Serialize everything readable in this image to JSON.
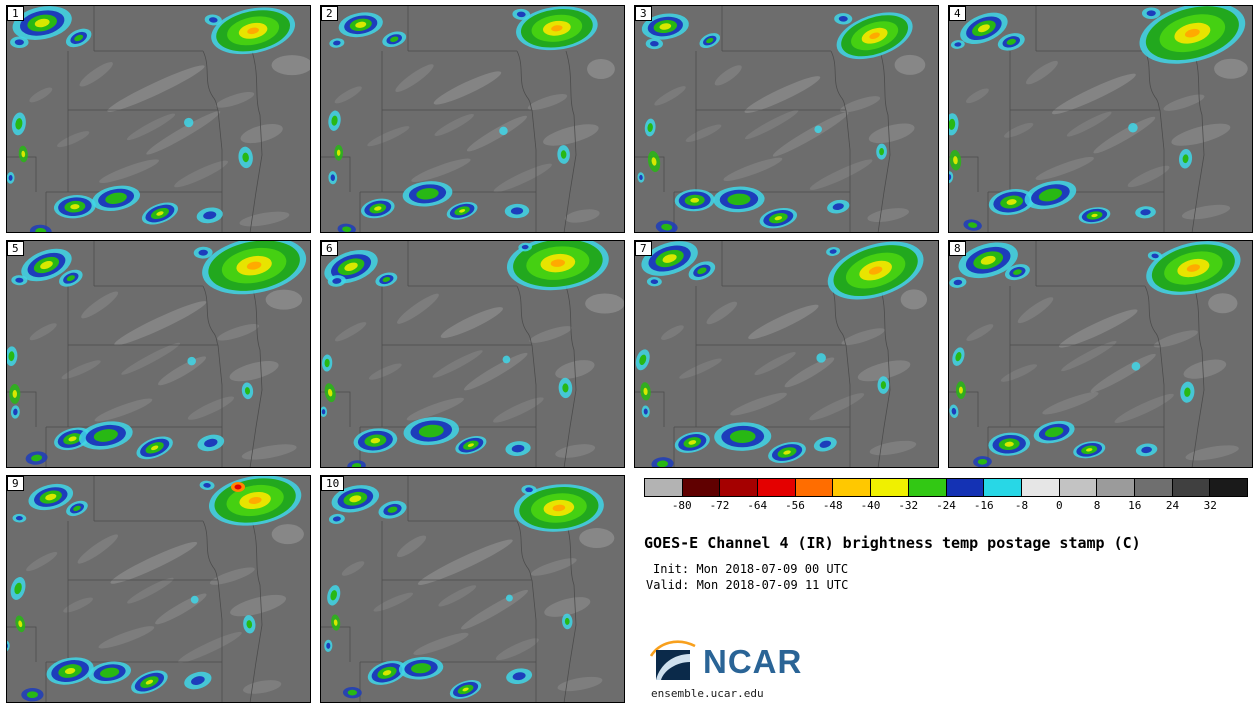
{
  "figure": {
    "background": "#ffffff",
    "map_base_color": "#6d6d6d",
    "border_line_color": "#4c4c4c"
  },
  "panels": [
    {
      "label": "1"
    },
    {
      "label": "2"
    },
    {
      "label": "3"
    },
    {
      "label": "4"
    },
    {
      "label": "5"
    },
    {
      "label": "6"
    },
    {
      "label": "7"
    },
    {
      "label": "8"
    },
    {
      "label": "9"
    },
    {
      "label": "10"
    }
  ],
  "legend": {
    "colorbar": {
      "colors": [
        "#b3b3b3",
        "#600000",
        "#a50000",
        "#e40000",
        "#ff6d00",
        "#ffc800",
        "#f0f000",
        "#32c814",
        "#1432b4",
        "#28d7e6",
        "#e6e6e6",
        "#c3c3c3",
        "#9b9b9b",
        "#6f6f6f",
        "#404040",
        "#1a1a1a"
      ],
      "ticks": [
        "-80",
        "-72",
        "-64",
        "-56",
        "-48",
        "-40",
        "-32",
        "-24",
        "-16",
        "-8",
        "0",
        "8",
        "16",
        "24",
        "32"
      ]
    },
    "title": "GOES-E Channel 4 (IR) brightness temp postage stamp (C)",
    "init_line": "Init: Mon 2018-07-09 00 UTC",
    "valid_line": "Valid: Mon 2018-07-09 11 UTC",
    "logo_text": "NCAR",
    "footer": "ensemble.ucar.edu",
    "brand_blue": "#2a6496",
    "logo_navy": "#0b2a4a",
    "logo_orange": "#f8a01d"
  }
}
